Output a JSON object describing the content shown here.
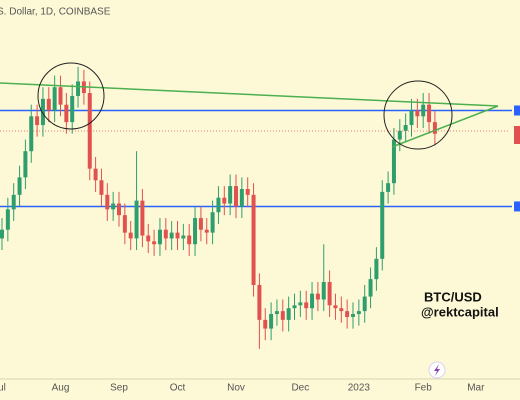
{
  "chart_data": {
    "type": "candlestick",
    "header": "S. Dollar, 1D, COINBASE",
    "annotations": [
      "BTC/USD",
      "@rektcapital"
    ],
    "categories": [
      "ul",
      null,
      null,
      null,
      null,
      null,
      null,
      null,
      null,
      null,
      "Aug",
      null,
      null,
      null,
      null,
      null,
      null,
      null,
      null,
      null,
      "Sep",
      null,
      null,
      null,
      null,
      null,
      null,
      null,
      null,
      null,
      "Oct",
      null,
      null,
      null,
      null,
      null,
      null,
      null,
      null,
      null,
      "Nov",
      null,
      null,
      null,
      null,
      null,
      null,
      null,
      null,
      null,
      null,
      "Dec",
      null,
      null,
      null,
      null,
      null,
      null,
      null,
      null,
      null,
      "2023",
      null,
      null,
      null,
      null,
      null,
      null,
      null,
      null,
      null,
      null,
      "Feb",
      null,
      null,
      null,
      null,
      null,
      null,
      null,
      null,
      "Mar"
    ],
    "open": [
      19300,
      19600,
      20300,
      20800,
      21400,
      22300,
      23500,
      23200,
      24100,
      23700,
      24500,
      23900,
      23300,
      24200,
      24700,
      24300,
      21700,
      21300,
      20800,
      20300,
      20500,
      20100,
      19500,
      19300,
      20600,
      19400,
      19200,
      19100,
      19600,
      19300,
      19500,
      19300,
      19400,
      19100,
      20000,
      19600,
      19500,
      20200,
      20700,
      20500,
      21100,
      20400,
      21000,
      20800,
      17700,
      16500,
      16200,
      16700,
      16800,
      16500,
      16900,
      17000,
      17100,
      16900,
      17400,
      17200,
      17800,
      17000,
      16900,
      16800,
      16600,
      16700,
      16800,
      17300,
      17900,
      18600,
      20900,
      21200,
      22700,
      23000,
      23200,
      23700,
      23500,
      23900,
      23300,
      null,
      null,
      null,
      null,
      null,
      null,
      null
    ],
    "high": [
      20000,
      20700,
      21200,
      21800,
      22700,
      23900,
      23900,
      24500,
      24500,
      24900,
      24900,
      24300,
      24600,
      25200,
      25100,
      24700,
      22100,
      21700,
      21200,
      20900,
      20900,
      20500,
      19900,
      22300,
      21000,
      19800,
      19600,
      20000,
      20000,
      19900,
      19900,
      19800,
      19800,
      20400,
      20400,
      20000,
      20600,
      21100,
      21100,
      21500,
      21500,
      21400,
      21400,
      21200,
      18100,
      16900,
      17100,
      17200,
      17200,
      17300,
      17400,
      17500,
      17500,
      17800,
      17800,
      19100,
      18200,
      17400,
      17300,
      17200,
      17100,
      17200,
      17700,
      18300,
      19000,
      21300,
      21600,
      23100,
      23400,
      23600,
      24100,
      24100,
      24300,
      24300,
      23700,
      null,
      null,
      null,
      null,
      null,
      null,
      null
    ],
    "low": [
      18900,
      19200,
      19900,
      20400,
      21000,
      21900,
      22800,
      22800,
      23300,
      23300,
      23500,
      22900,
      22900,
      23800,
      23900,
      21300,
      20900,
      20400,
      19900,
      19900,
      19700,
      19100,
      18900,
      18900,
      19000,
      18800,
      18700,
      18700,
      18900,
      18900,
      18900,
      18900,
      18700,
      18700,
      19200,
      19100,
      19100,
      19800,
      20100,
      20100,
      20000,
      20000,
      20400,
      17300,
      15500,
      15800,
      15800,
      16300,
      16100,
      16100,
      16500,
      16600,
      16500,
      16500,
      16800,
      16800,
      16600,
      16500,
      16400,
      16200,
      16200,
      16300,
      16400,
      16900,
      17500,
      18200,
      20500,
      20800,
      22300,
      22600,
      22800,
      23100,
      23100,
      22900,
      22500,
      null,
      null,
      null,
      null,
      null,
      null,
      null
    ],
    "close": [
      19600,
      20300,
      20800,
      21400,
      22300,
      23500,
      23200,
      24100,
      23700,
      24500,
      23900,
      23300,
      24200,
      24700,
      24300,
      21700,
      21300,
      20800,
      20300,
      20500,
      20100,
      19500,
      19300,
      20600,
      19400,
      19200,
      19100,
      19600,
      19300,
      19500,
      19300,
      19400,
      19100,
      20000,
      19600,
      19500,
      20200,
      20700,
      20500,
      21100,
      20400,
      21000,
      20800,
      17700,
      16500,
      16200,
      16700,
      16800,
      16500,
      16900,
      17000,
      17100,
      16900,
      17400,
      17200,
      17800,
      17000,
      16900,
      16800,
      16600,
      16700,
      16800,
      17300,
      17900,
      18600,
      20900,
      21200,
      22700,
      23000,
      23200,
      23700,
      23500,
      23900,
      23300,
      22900,
      null,
      null,
      null,
      null,
      null,
      null,
      null
    ],
    "up_color": "#2e9e6e",
    "down_color": "#e0514f",
    "ylim": [
      14500,
      27500
    ],
    "levels": [
      23700,
      20400
    ],
    "level_color": "#2962ff"
  }
}
